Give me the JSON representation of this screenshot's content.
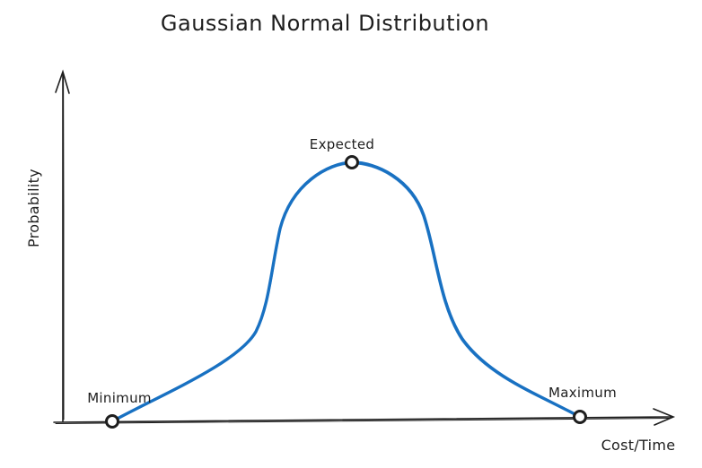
{
  "title": "Gaussian Normal Distribution",
  "axes": {
    "y_label": "Probability",
    "x_label": "Cost/Time"
  },
  "points": {
    "minimum": "Minimum",
    "expected": "Expected",
    "maximum": "Maximum"
  },
  "colors": {
    "curve": "#1971c2",
    "ink": "#1e1e1e"
  }
}
